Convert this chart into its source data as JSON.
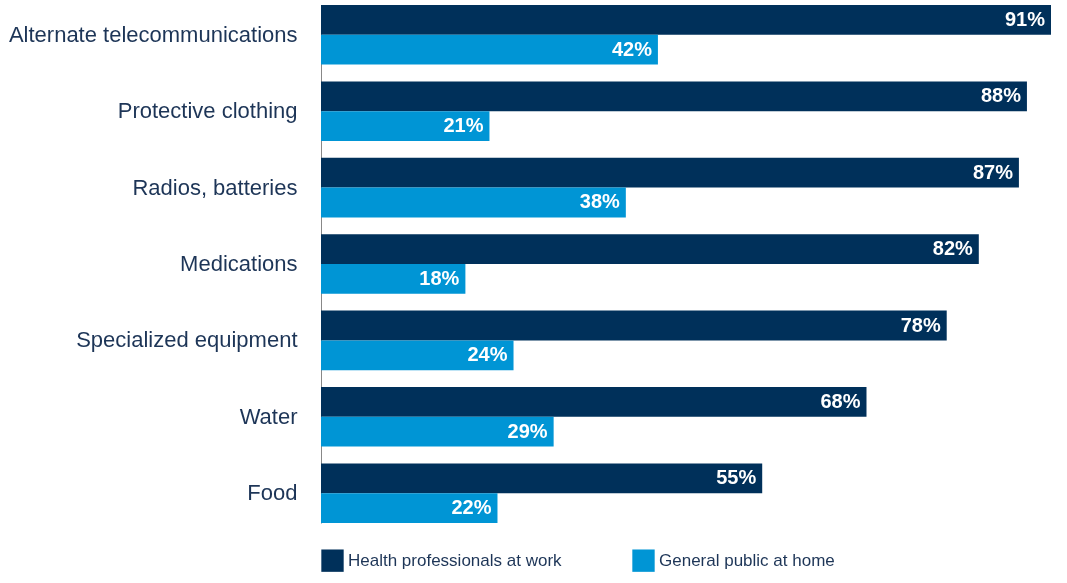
{
  "chart_data": {
    "type": "bar",
    "orientation": "horizontal",
    "legend": "bottom",
    "tick_labels": "y",
    "categories": [
      "Alternate telecommunications",
      "Protective clothing",
      "Radios, batteries",
      "Medications",
      "Specialized equipment",
      "Water",
      "Food"
    ],
    "series": [
      {
        "name": "Health professionals at work",
        "color": "#00305a",
        "values": [
          91,
          88,
          87,
          82,
          78,
          68,
          55
        ],
        "value_labels": [
          "91%",
          "88%",
          "87%",
          "82%",
          "78%",
          "68%",
          "55%"
        ]
      },
      {
        "name": "General public at home",
        "color": "#0095d5",
        "values": [
          42,
          21,
          38,
          18,
          24,
          29,
          22
        ],
        "value_labels": [
          "42%",
          "21%",
          "38%",
          "18%",
          "24%",
          "29%",
          "22%"
        ]
      }
    ]
  }
}
